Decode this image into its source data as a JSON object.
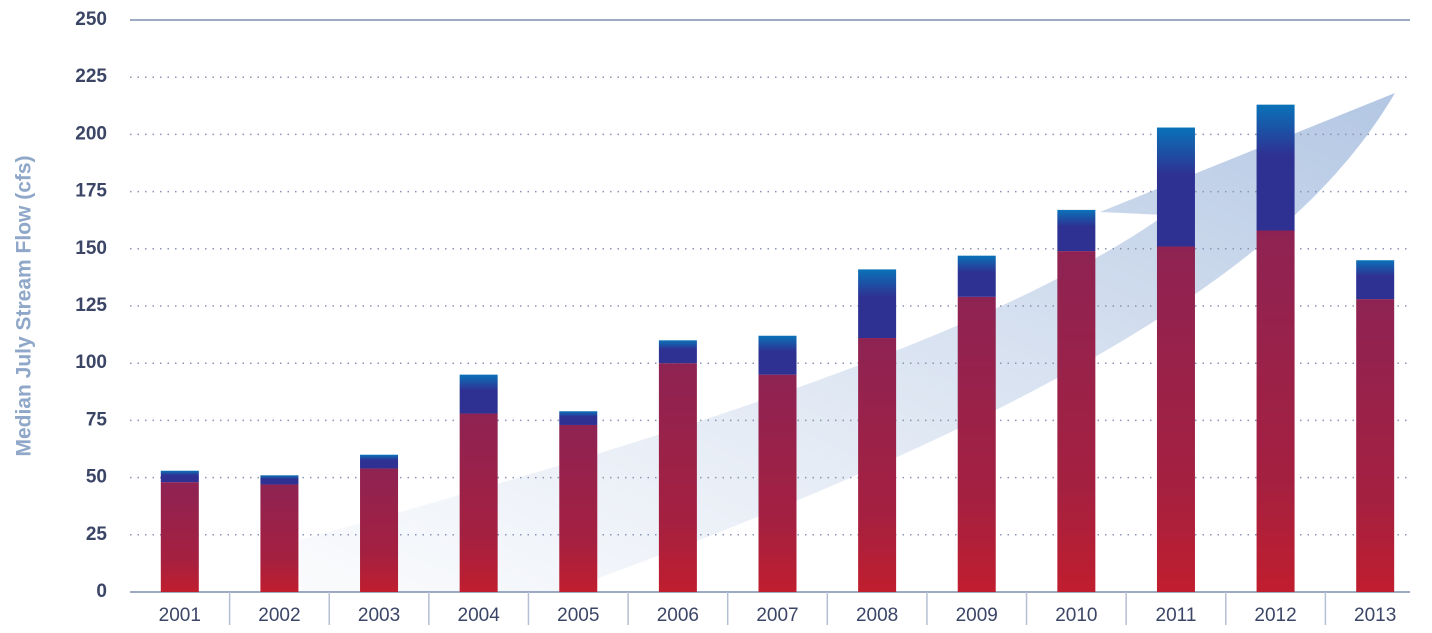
{
  "chart_data": {
    "type": "bar",
    "stacked": true,
    "y_label": "Median July Stream Flow (cfs)",
    "categories": [
      "2001",
      "2002",
      "2003",
      "2004",
      "2005",
      "2006",
      "2007",
      "2008",
      "2009",
      "2010",
      "2011",
      "2012",
      "2013"
    ],
    "series": [
      {
        "color": "#a0204a",
        "values": [
          48,
          47,
          54,
          78,
          73,
          100,
          95,
          111,
          129,
          149,
          151,
          158,
          128
        ]
      },
      {
        "color": "#2e3192",
        "values": [
          5,
          4,
          6,
          17,
          6,
          10,
          17,
          30,
          18,
          18,
          52,
          55,
          17
        ]
      }
    ],
    "ylim": [
      0,
      250
    ],
    "yticks": [
      0,
      25,
      50,
      75,
      100,
      125,
      150,
      175,
      200,
      225,
      250
    ],
    "grid": true
  }
}
